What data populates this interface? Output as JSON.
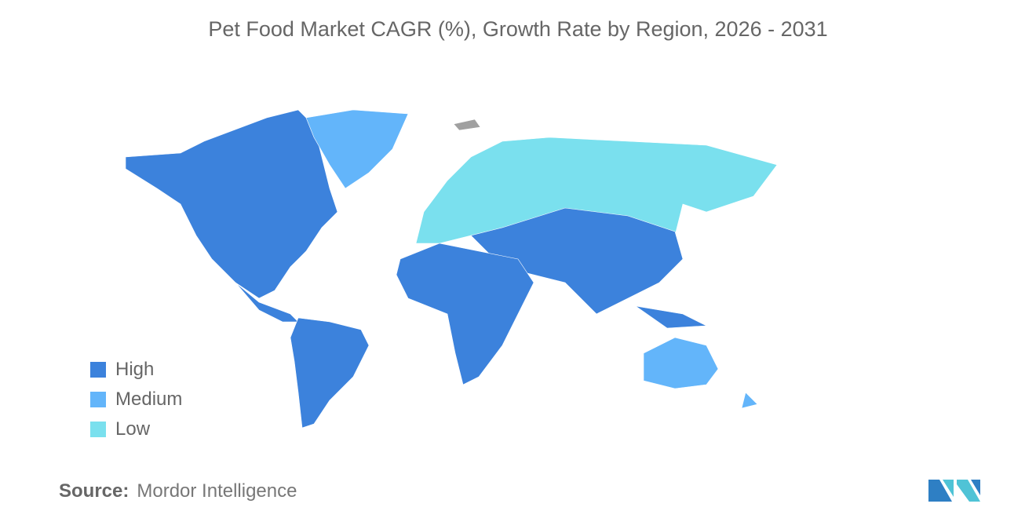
{
  "title": "Pet Food Market CAGR (%), Growth Rate by Region, 2026 - 2031",
  "legend": [
    {
      "label": "High",
      "color": "#3c82dc"
    },
    {
      "label": "Medium",
      "color": "#63b5fa"
    },
    {
      "label": "Low",
      "color": "#7ae0ee"
    }
  ],
  "no_data_color": "#a0a0a0",
  "regions": {
    "north_america": "High",
    "south_america": "High",
    "africa": "High",
    "asia": "High",
    "greenland": "Medium",
    "australia_new_zealand": "Medium",
    "europe_russia": "Low"
  },
  "source": {
    "label": "Source:",
    "value": "Mordor Intelligence"
  },
  "logo": "mordor-intelligence-logo"
}
